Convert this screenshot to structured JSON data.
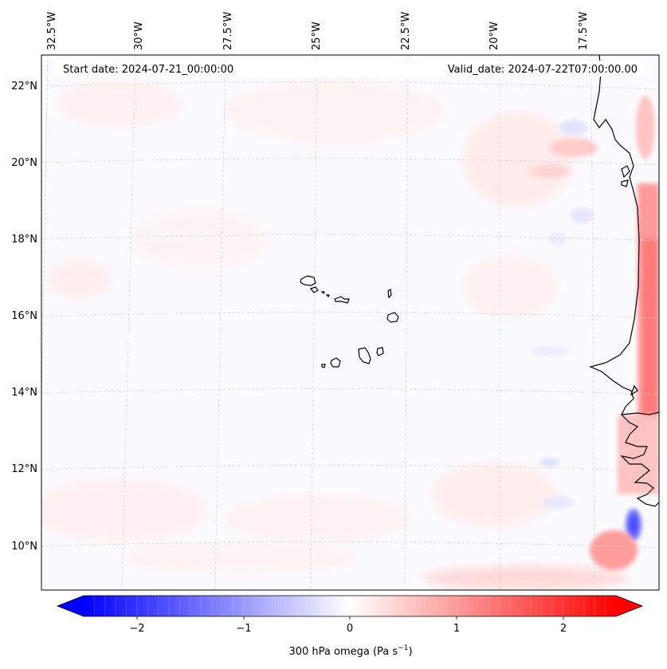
{
  "map": {
    "start_label": "Start date: 2024-07-21_00:00:00",
    "valid_label": "Valid_date: 2024-07-22T07:00:00.00",
    "lon_labels": [
      "32.5°W",
      "30°W",
      "27.5°W",
      "25°W",
      "22.5°W",
      "20°W",
      "17.5°W"
    ],
    "lat_labels": [
      "22°N",
      "20°N",
      "18°N",
      "16°N",
      "14°N",
      "12°N",
      "10°N"
    ],
    "colorbar": {
      "label": "300 hPa omega (Pa s",
      "label_sup": "−1",
      "label_end": ")",
      "ticks": [
        "−2",
        "−1",
        "0",
        "1",
        "2"
      ],
      "tick_values": [
        -2,
        -1,
        0,
        1,
        2
      ],
      "range": [
        -2.5,
        2.5
      ],
      "colormap": "bwr",
      "low_color": "#0000ff",
      "mid_color": "#ffffff",
      "high_color": "#ff0000"
    },
    "coastline_color": "#000000",
    "gridline_color": "#c8c8c8"
  }
}
